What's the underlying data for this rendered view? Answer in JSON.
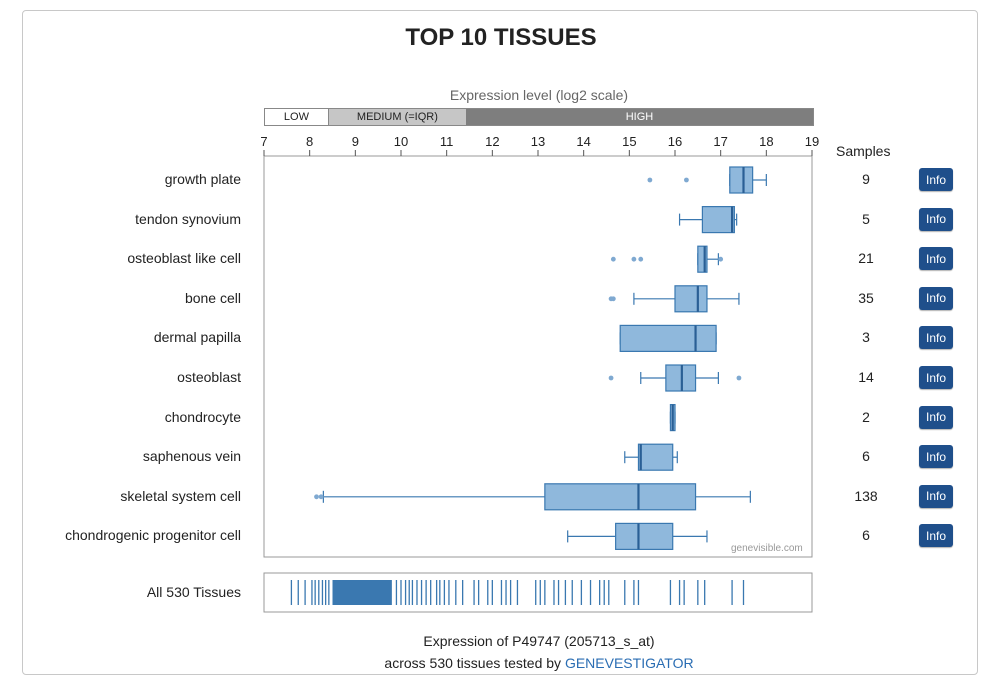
{
  "title": "TOP 10 TISSUES",
  "scale_title": "Expression level (log2 scale)",
  "levels": {
    "low": "LOW",
    "medium": "MEDIUM (=IQR)",
    "high": "HIGH"
  },
  "samples_header": "Samples",
  "info_label": "Info",
  "all_label": "All 530 Tissues",
  "watermark": "genevisible.com",
  "footer": {
    "line1": "Expression of P49747 (205713_s_at)",
    "line2_prefix": "across 530 tissues tested by ",
    "line2_link": "GENEVESTIGATOR"
  },
  "colors": {
    "box_fill": "#8fb8dc",
    "box_stroke": "#3a78b0",
    "info_button": "#1f4f8b",
    "link": "#2a6db3"
  },
  "chart_data": {
    "type": "boxplot",
    "xlim": [
      7,
      19
    ],
    "xticks": [
      7,
      8,
      9,
      10,
      11,
      12,
      13,
      14,
      15,
      16,
      17,
      18,
      19
    ],
    "level_bands": {
      "low_to": 8.4,
      "medium_to": 11.4
    },
    "tissues": [
      {
        "name": "growth plate",
        "samples": "9",
        "whisker": [
          17.2,
          18.0
        ],
        "q1": 17.2,
        "median": 17.5,
        "q3": 17.7,
        "outliers": [
          15.45,
          16.25
        ]
      },
      {
        "name": "tendon synovium",
        "samples": "5",
        "whisker": [
          16.1,
          17.35
        ],
        "q1": 16.6,
        "median": 17.25,
        "q3": 17.3,
        "outliers": []
      },
      {
        "name": "osteoblast like cell",
        "samples": "21",
        "whisker": [
          16.5,
          16.95
        ],
        "q1": 16.5,
        "median": 16.65,
        "q3": 16.7,
        "outliers": [
          14.65,
          15.1,
          15.25,
          17.0
        ]
      },
      {
        "name": "bone cell",
        "samples": "35",
        "whisker": [
          15.1,
          17.4
        ],
        "q1": 16.0,
        "median": 16.5,
        "q3": 16.7,
        "outliers": [
          14.6,
          14.65
        ]
      },
      {
        "name": "dermal papilla",
        "samples": "3",
        "whisker": [
          14.8,
          16.9
        ],
        "q1": 14.8,
        "median": 16.45,
        "q3": 16.9,
        "outliers": []
      },
      {
        "name": "osteoblast",
        "samples": "14",
        "whisker": [
          15.25,
          16.95
        ],
        "q1": 15.8,
        "median": 16.15,
        "q3": 16.45,
        "outliers": [
          14.6,
          17.4
        ]
      },
      {
        "name": "chondrocyte",
        "samples": "2",
        "whisker": [
          15.9,
          16.0
        ],
        "q1": 15.9,
        "median": 15.95,
        "q3": 16.0,
        "outliers": []
      },
      {
        "name": "saphenous vein",
        "samples": "6",
        "whisker": [
          14.9,
          16.05
        ],
        "q1": 15.2,
        "median": 15.25,
        "q3": 15.95,
        "outliers": []
      },
      {
        "name": "skeletal system cell",
        "samples": "138",
        "whisker": [
          8.3,
          17.65
        ],
        "q1": 13.15,
        "median": 15.2,
        "q3": 16.45,
        "outliers": [
          8.15,
          8.25
        ]
      },
      {
        "name": "chondrogenic progenitor cell",
        "samples": "6",
        "whisker": [
          13.65,
          16.7
        ],
        "q1": 14.7,
        "median": 15.2,
        "q3": 15.95,
        "outliers": []
      }
    ],
    "all_tissues": {
      "dense_range": [
        8.5,
        9.8
      ],
      "values": [
        7.6,
        7.75,
        7.9,
        8.05,
        8.12,
        8.2,
        8.28,
        8.35,
        8.42,
        9.9,
        10.0,
        10.1,
        10.18,
        10.25,
        10.35,
        10.45,
        10.55,
        10.65,
        10.78,
        10.85,
        10.95,
        11.05,
        11.2,
        11.35,
        11.6,
        11.7,
        11.9,
        12.0,
        12.2,
        12.3,
        12.4,
        12.55,
        12.95,
        13.05,
        13.15,
        13.35,
        13.45,
        13.6,
        13.75,
        13.95,
        14.15,
        14.35,
        14.45,
        14.55,
        14.9,
        15.1,
        15.2,
        15.9,
        16.1,
        16.2,
        16.5,
        16.65,
        17.25,
        17.5
      ]
    }
  }
}
